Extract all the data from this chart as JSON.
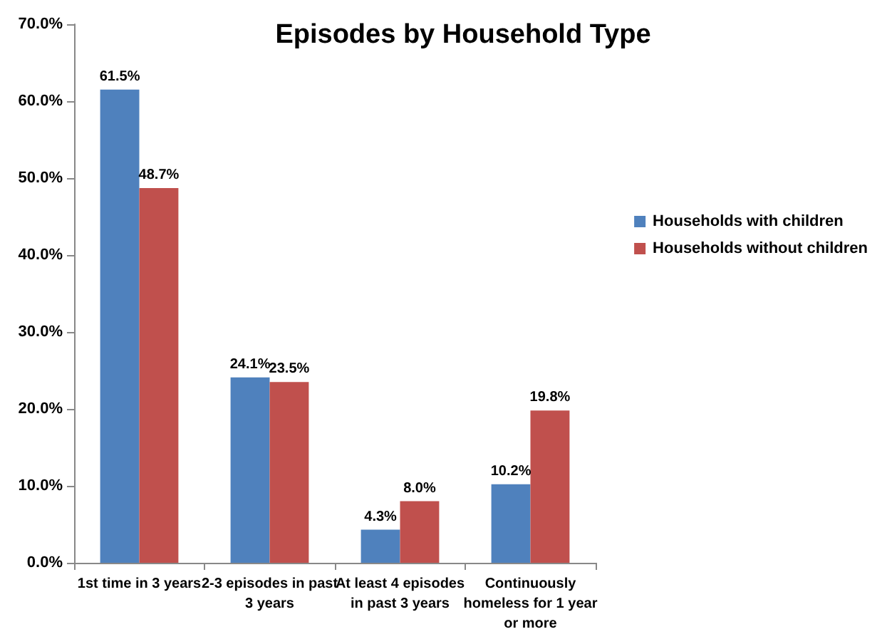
{
  "chart_data": {
    "type": "bar",
    "title": "Episodes by Household Type",
    "categories": [
      "1st time in 3 years",
      "2-3 episodes in past 3 years",
      "At least 4 episodes in past 3 years",
      "Continuously homeless for 1 year or more"
    ],
    "series": [
      {
        "name": "Households with children",
        "color": "#4f81bd",
        "values": [
          61.5,
          24.1,
          4.3,
          10.2
        ],
        "value_labels": [
          "61.5%",
          "24.1%",
          "4.3%",
          "10.2%"
        ]
      },
      {
        "name": "Households without children",
        "color": "#c0504d",
        "values": [
          48.7,
          23.5,
          8.0,
          19.8
        ],
        "value_labels": [
          "48.7%",
          "23.5%",
          "8.0%",
          "19.8%"
        ]
      }
    ],
    "ylim": [
      0,
      70
    ],
    "yticks": [
      {
        "value": 0,
        "label": "0.0%"
      },
      {
        "value": 10,
        "label": "10.0%"
      },
      {
        "value": 20,
        "label": "20.0%"
      },
      {
        "value": 30,
        "label": "30.0%"
      },
      {
        "value": 40,
        "label": "40.0%"
      },
      {
        "value": 50,
        "label": "50.0%"
      },
      {
        "value": 60,
        "label": "60.0%"
      },
      {
        "value": 70,
        "label": "70.0%"
      }
    ],
    "grid": false,
    "legend": "right"
  }
}
